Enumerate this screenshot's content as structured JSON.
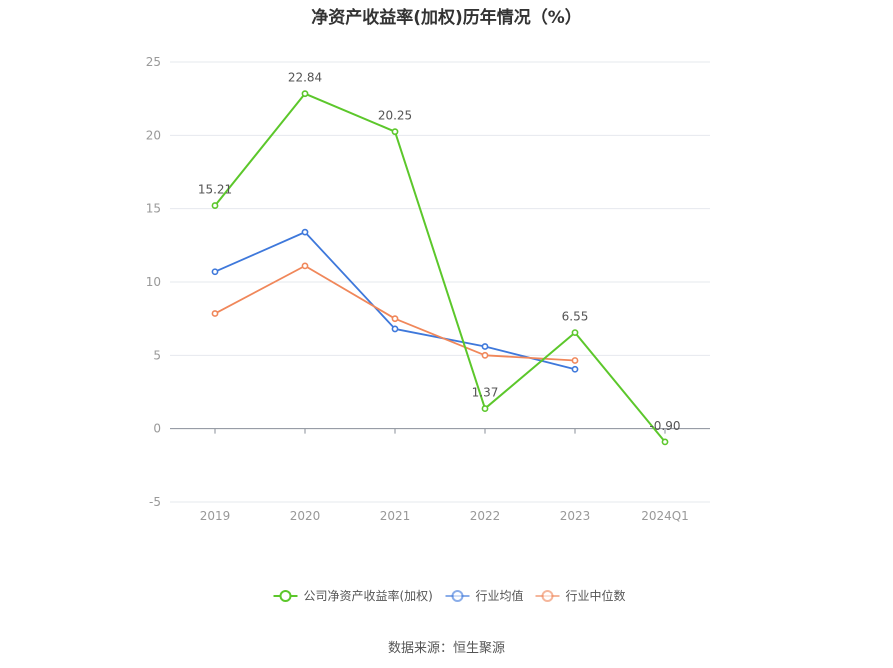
{
  "title": "净资产收益率(加权)历年情况（%）",
  "source": "数据来源：恒生聚源",
  "chart_data": {
    "type": "line",
    "categories": [
      "2019",
      "2020",
      "2021",
      "2022",
      "2023",
      "2024Q1"
    ],
    "ylim": [
      -5,
      25
    ],
    "yticks": [
      -5,
      0,
      5,
      10,
      15,
      20,
      25
    ],
    "ytick_labels": [
      "-5",
      "0",
      "5",
      "10",
      "15",
      "20",
      "25"
    ],
    "grid": true,
    "legend_position": "bottom",
    "series": [
      {
        "name": "公司净资产收益率(加权)",
        "color": "#5cc72b",
        "values": [
          15.21,
          22.84,
          20.25,
          1.37,
          6.55,
          -0.9
        ],
        "labels": [
          "15.21",
          "22.84",
          "20.25",
          "1.37",
          "6.55",
          "-0.90"
        ]
      },
      {
        "name": "行业均值",
        "color": "#3e78db",
        "values": [
          10.7,
          13.4,
          6.8,
          5.6,
          4.05,
          null
        ]
      },
      {
        "name": "行业中位数",
        "color": "#f0875a",
        "values": [
          7.85,
          11.1,
          7.5,
          5.0,
          4.65,
          null
        ]
      }
    ]
  }
}
